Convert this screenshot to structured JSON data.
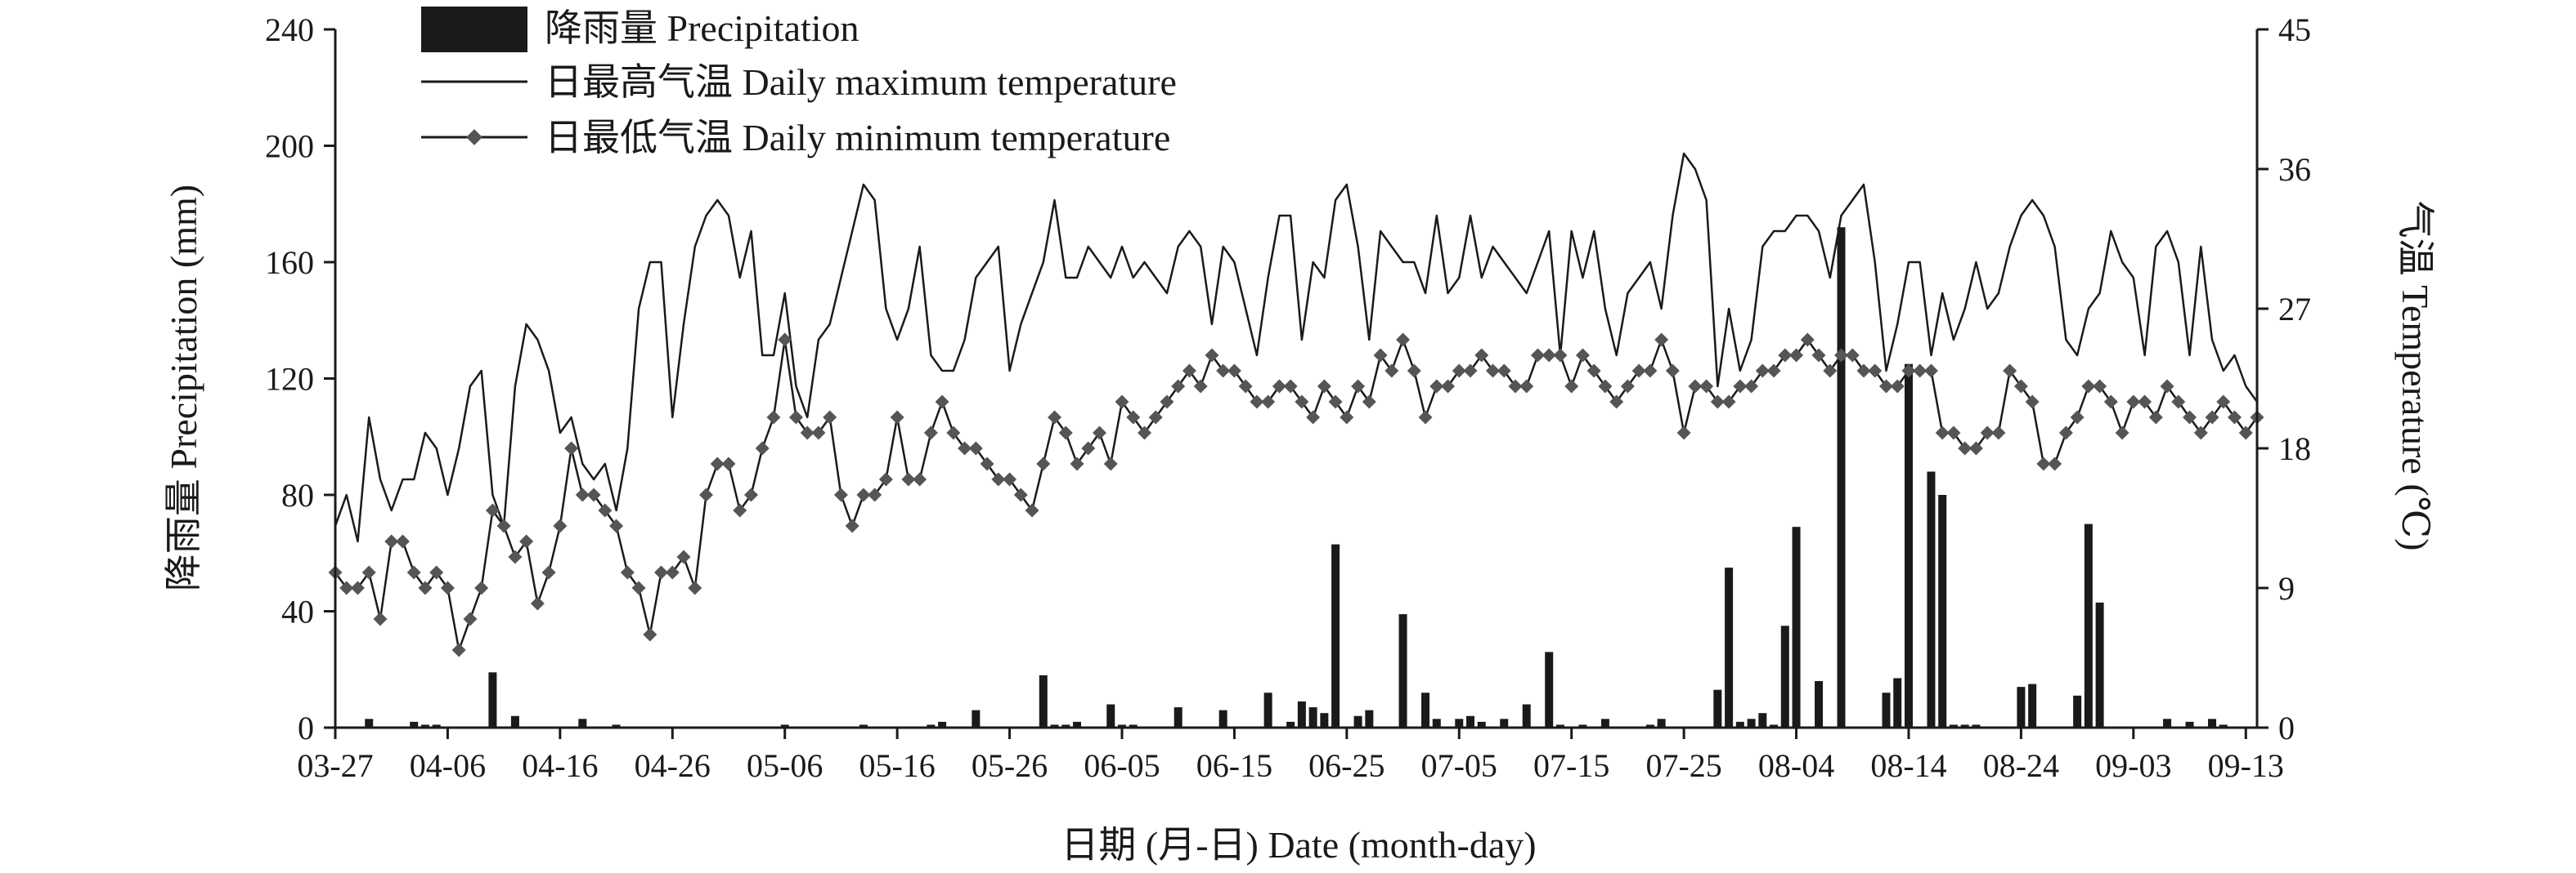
{
  "chart_data": {
    "type": "bar+line",
    "title": "",
    "xlabel": "日期 (月-日) Date (month-day)",
    "ylabel_left": "降雨量 Precipitation (mm)",
    "ylabel_right": "气温 Temperature (℃)",
    "ylim_left": [
      0,
      240
    ],
    "ylim_right": [
      0,
      45
    ],
    "yticks_left": [
      "0",
      "40",
      "80",
      "120",
      "160",
      "200",
      "240"
    ],
    "yticks_right": [
      "0",
      "9",
      "18",
      "27",
      "36",
      "45"
    ],
    "grid": false,
    "legend_position": "top-left",
    "x_range_days": [
      0,
      171
    ],
    "x_ticks": [
      {
        "day": 0,
        "label": "03-27"
      },
      {
        "day": 10,
        "label": "04-06"
      },
      {
        "day": 20,
        "label": "04-16"
      },
      {
        "day": 30,
        "label": "04-26"
      },
      {
        "day": 40,
        "label": "05-06"
      },
      {
        "day": 50,
        "label": "05-16"
      },
      {
        "day": 60,
        "label": "05-26"
      },
      {
        "day": 70,
        "label": "06-05"
      },
      {
        "day": 80,
        "label": "06-15"
      },
      {
        "day": 90,
        "label": "06-25"
      },
      {
        "day": 100,
        "label": "07-05"
      },
      {
        "day": 110,
        "label": "07-15"
      },
      {
        "day": 120,
        "label": "07-25"
      },
      {
        "day": 130,
        "label": "08-04"
      },
      {
        "day": 140,
        "label": "08-14"
      },
      {
        "day": 150,
        "label": "08-24"
      },
      {
        "day": 160,
        "label": "09-03"
      },
      {
        "day": 170,
        "label": "09-13"
      }
    ],
    "series": [
      {
        "name": "降雨量 Precipitation",
        "type": "bar",
        "axis": "left",
        "color": "#1a1a1a",
        "x": [
          3,
          7,
          8,
          9,
          14,
          16,
          22,
          25,
          40,
          47,
          53,
          54,
          57,
          63,
          64,
          65,
          66,
          69,
          70,
          71,
          75,
          79,
          83,
          85,
          86,
          87,
          88,
          89,
          91,
          92,
          95,
          97,
          98,
          100,
          101,
          102,
          104,
          106,
          108,
          109,
          111,
          113,
          117,
          118,
          123,
          124,
          125,
          126,
          127,
          128,
          129,
          130,
          132,
          134,
          138,
          139,
          140,
          142,
          143,
          144,
          145,
          146,
          150,
          151,
          155,
          156,
          157,
          163,
          165,
          167,
          168
        ],
        "values": [
          3,
          2,
          1,
          1,
          19,
          4,
          3,
          1,
          1,
          1,
          1,
          2,
          6,
          18,
          1,
          1,
          2,
          8,
          1,
          1,
          7,
          6,
          12,
          2,
          9,
          7,
          5,
          63,
          4,
          6,
          39,
          12,
          3,
          3,
          4,
          2,
          3,
          8,
          26,
          1,
          1,
          3,
          1,
          3,
          13,
          55,
          2,
          3,
          5,
          1,
          35,
          69,
          16,
          172,
          12,
          17,
          125,
          88,
          80,
          1,
          1,
          1,
          14,
          15,
          11,
          70,
          43,
          3,
          2,
          3,
          1
        ]
      },
      {
        "name": "日最高气温 Daily maximum temperature",
        "type": "line",
        "axis": "right",
        "color": "#1a1a1a",
        "x": [
          0,
          1,
          2,
          3,
          4,
          5,
          6,
          7,
          8,
          9,
          10,
          11,
          12,
          13,
          14,
          15,
          16,
          17,
          18,
          19,
          20,
          21,
          22,
          23,
          24,
          25,
          26,
          27,
          28,
          29,
          30,
          31,
          32,
          33,
          34,
          35,
          36,
          37,
          38,
          39,
          40,
          41,
          42,
          43,
          44,
          45,
          46,
          47,
          48,
          49,
          50,
          51,
          52,
          53,
          54,
          55,
          56,
          57,
          58,
          59,
          60,
          61,
          62,
          63,
          64,
          65,
          66,
          67,
          68,
          69,
          70,
          71,
          72,
          73,
          74,
          75,
          76,
          77,
          78,
          79,
          80,
          81,
          82,
          83,
          84,
          85,
          86,
          87,
          88,
          89,
          90,
          91,
          92,
          93,
          94,
          95,
          96,
          97,
          98,
          99,
          100,
          101,
          102,
          103,
          104,
          105,
          106,
          107,
          108,
          109,
          110,
          111,
          112,
          113,
          114,
          115,
          116,
          117,
          118,
          119,
          120,
          121,
          122,
          123,
          124,
          125,
          126,
          127,
          128,
          129,
          130,
          131,
          132,
          133,
          134,
          135,
          136,
          137,
          138,
          139,
          140,
          141,
          142,
          143,
          144,
          145,
          146,
          147,
          148,
          149,
          150,
          151,
          152,
          153,
          154,
          155,
          156,
          157,
          158,
          159,
          160,
          161,
          162,
          163,
          164,
          165,
          166,
          167,
          168,
          169,
          170,
          171
        ],
        "values": [
          13,
          15,
          12,
          20,
          16,
          14,
          16,
          16,
          19,
          18,
          15,
          18,
          22,
          23,
          15,
          13,
          22,
          26,
          25,
          23,
          19,
          20,
          17,
          16,
          17,
          14,
          18,
          27,
          30,
          30,
          20,
          26,
          31,
          33,
          34,
          33,
          29,
          32,
          24,
          24,
          28,
          22,
          20,
          25,
          26,
          29,
          32,
          35,
          34,
          27,
          25,
          27,
          31,
          24,
          23,
          23,
          25,
          29,
          30,
          31,
          23,
          26,
          28,
          30,
          34,
          29,
          29,
          31,
          30,
          29,
          31,
          29,
          30,
          29,
          28,
          31,
          32,
          31,
          26,
          31,
          30,
          27,
          24,
          29,
          33,
          33,
          25,
          30,
          29,
          34,
          35,
          31,
          25,
          32,
          31,
          30,
          30,
          28,
          33,
          28,
          29,
          33,
          29,
          31,
          30,
          29,
          28,
          30,
          32,
          24,
          32,
          29,
          32,
          27,
          24,
          28,
          29,
          30,
          27,
          33,
          37,
          36,
          34,
          22,
          27,
          23,
          25,
          31,
          32,
          32,
          33,
          33,
          32,
          29,
          33,
          34,
          35,
          30,
          23,
          26,
          30,
          30,
          24,
          28,
          25,
          27,
          30,
          27,
          28,
          31,
          33,
          34,
          33,
          31,
          25,
          24,
          27,
          28,
          32,
          30,
          29,
          24,
          31,
          32,
          30,
          24,
          31,
          25,
          23,
          24,
          22,
          21
        ]
      },
      {
        "name": "日最低气温 Daily minimum temperature",
        "type": "line-markers",
        "axis": "right",
        "color": "#1a1a1a",
        "marker_color": "#555555",
        "x": [
          0,
          1,
          2,
          3,
          4,
          5,
          6,
          7,
          8,
          9,
          10,
          11,
          12,
          13,
          14,
          15,
          16,
          17,
          18,
          19,
          20,
          21,
          22,
          23,
          24,
          25,
          26,
          27,
          28,
          29,
          30,
          31,
          32,
          33,
          34,
          35,
          36,
          37,
          38,
          39,
          40,
          41,
          42,
          43,
          44,
          45,
          46,
          47,
          48,
          49,
          50,
          51,
          52,
          53,
          54,
          55,
          56,
          57,
          58,
          59,
          60,
          61,
          62,
          63,
          64,
          65,
          66,
          67,
          68,
          69,
          70,
          71,
          72,
          73,
          74,
          75,
          76,
          77,
          78,
          79,
          80,
          81,
          82,
          83,
          84,
          85,
          86,
          87,
          88,
          89,
          90,
          91,
          92,
          93,
          94,
          95,
          96,
          97,
          98,
          99,
          100,
          101,
          102,
          103,
          104,
          105,
          106,
          107,
          108,
          109,
          110,
          111,
          112,
          113,
          114,
          115,
          116,
          117,
          118,
          119,
          120,
          121,
          122,
          123,
          124,
          125,
          126,
          127,
          128,
          129,
          130,
          131,
          132,
          133,
          134,
          135,
          136,
          137,
          138,
          139,
          140,
          141,
          142,
          143,
          144,
          145,
          146,
          147,
          148,
          149,
          150,
          151,
          152,
          153,
          154,
          155,
          156,
          157,
          158,
          159,
          160,
          161,
          162,
          163,
          164,
          165,
          166,
          167,
          168,
          169,
          170,
          171
        ],
        "values": [
          10,
          9,
          9,
          10,
          7,
          12,
          12,
          10,
          9,
          10,
          9,
          5,
          7,
          9,
          14,
          13,
          11,
          12,
          8,
          10,
          13,
          18,
          15,
          15,
          14,
          13,
          10,
          9,
          6,
          10,
          10,
          11,
          9,
          15,
          17,
          17,
          14,
          15,
          18,
          20,
          25,
          20,
          19,
          19,
          20,
          15,
          13,
          15,
          15,
          16,
          20,
          16,
          16,
          19,
          21,
          19,
          18,
          18,
          17,
          16,
          16,
          15,
          14,
          17,
          20,
          19,
          17,
          18,
          19,
          17,
          21,
          20,
          19,
          20,
          21,
          22,
          23,
          22,
          24,
          23,
          23,
          22,
          21,
          21,
          22,
          22,
          21,
          20,
          22,
          21,
          20,
          22,
          21,
          24,
          23,
          25,
          23,
          20,
          22,
          22,
          23,
          23,
          24,
          23,
          23,
          22,
          22,
          24,
          24,
          24,
          22,
          24,
          23,
          22,
          21,
          22,
          23,
          23,
          25,
          23,
          19,
          22,
          22,
          21,
          21,
          22,
          22,
          23,
          23,
          24,
          24,
          25,
          24,
          23,
          24,
          24,
          23,
          23,
          22,
          22,
          23,
          23,
          23,
          19,
          19,
          18,
          18,
          19,
          19,
          23,
          22,
          21,
          17,
          17,
          19,
          20,
          22,
          22,
          21,
          19,
          21,
          21,
          20,
          22,
          21,
          20,
          19,
          20,
          21,
          20,
          19,
          20
        ]
      }
    ]
  }
}
